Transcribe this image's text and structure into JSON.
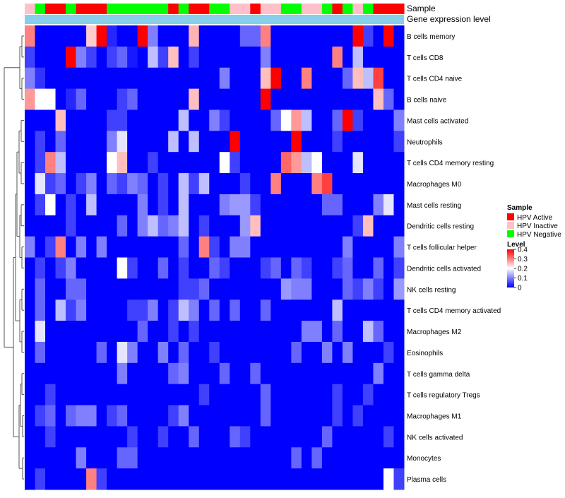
{
  "chart_data": {
    "type": "heatmap",
    "title": "",
    "annotation_tracks": {
      "sample_label": "Sample",
      "expression_label": "Gene expression level",
      "expression_color": "#87CEEB"
    },
    "samples": [
      "HPV Inactive",
      "HPV Negative",
      "HPV Active",
      "HPV Active",
      "HPV Negative",
      "HPV Active",
      "HPV Active",
      "HPV Active",
      "HPV Negative",
      "HPV Negative",
      "HPV Negative",
      "HPV Negative",
      "HPV Negative",
      "HPV Negative",
      "HPV Active",
      "HPV Negative",
      "HPV Active",
      "HPV Active",
      "HPV Negative",
      "HPV Negative",
      "HPV Inactive",
      "HPV Inactive",
      "HPV Active",
      "HPV Inactive",
      "HPV Inactive",
      "HPV Negative",
      "HPV Negative",
      "HPV Inactive",
      "HPV Inactive",
      "HPV Negative",
      "HPV Active",
      "HPV Negative",
      "HPV Inactive",
      "HPV Negative",
      "HPV Active",
      "HPV Active",
      "HPV Active"
    ],
    "rows": [
      "B cells memory",
      "T cells CD8",
      "T cells CD4 naive",
      "B cells naive",
      "Mast cells activated",
      "Neutrophils",
      "T cells CD4 memory resting",
      "Macrophages M0",
      "Mast cells resting",
      "Dendritic cells resting",
      "T cells follicular helper",
      "Dendritic cells activated",
      "NK cells resting",
      "T cells CD4 memory activated",
      "Macrophages M2",
      "Eosinophils",
      "T cells gamma delta",
      "T cells regulatory  Tregs",
      "Macrophages M1",
      "NK cells activated",
      "Monocytes",
      "Plasma cells"
    ],
    "values": [
      [
        0.3,
        0.0,
        0.0,
        0.0,
        0.0,
        0.0,
        0.24,
        0.4,
        0.03,
        0.0,
        0.0,
        0.4,
        0.1,
        0.0,
        0.0,
        0.0,
        0.26,
        0.0,
        0.0,
        0.0,
        0.0,
        0.08,
        0.08,
        0.3,
        0.0,
        0.0,
        0.0,
        0.0,
        0.0,
        0.0,
        0.0,
        0.0,
        0.4,
        0.05,
        0.0,
        0.4,
        0.0
      ],
      [
        0.05,
        0.0,
        0.0,
        0.0,
        0.4,
        0.1,
        0.05,
        0.0,
        0.05,
        0.08,
        0.02,
        0.0,
        0.15,
        0.05,
        0.25,
        0.0,
        0.05,
        0.0,
        0.0,
        0.0,
        0.0,
        0.0,
        0.0,
        0.1,
        0.0,
        0.0,
        0.0,
        0.0,
        0.0,
        0.0,
        0.3,
        0.0,
        0.15,
        0.0,
        0.0,
        0.0,
        0.0
      ],
      [
        0.1,
        0.04,
        0.0,
        0.0,
        0.0,
        0.0,
        0.0,
        0.0,
        0.0,
        0.0,
        0.0,
        0.0,
        0.0,
        0.0,
        0.0,
        0.0,
        0.0,
        0.0,
        0.0,
        0.1,
        0.0,
        0.0,
        0.0,
        0.25,
        0.4,
        0.0,
        0.0,
        0.3,
        0.0,
        0.0,
        0.0,
        0.08,
        0.25,
        0.15,
        0.35,
        0.0,
        0.0
      ],
      [
        0.28,
        0.2,
        0.2,
        0.0,
        0.03,
        0.08,
        0.0,
        0.0,
        0.0,
        0.05,
        0.08,
        0.0,
        0.0,
        0.0,
        0.0,
        0.0,
        0.25,
        0.0,
        0.0,
        0.0,
        0.0,
        0.0,
        0.0,
        0.4,
        0.0,
        0.0,
        0.0,
        0.0,
        0.0,
        0.0,
        0.0,
        0.0,
        0.0,
        0.0,
        0.25,
        0.08,
        0.0
      ],
      [
        0.0,
        0.0,
        0.0,
        0.25,
        0.0,
        0.0,
        0.0,
        0.0,
        0.05,
        0.05,
        0.0,
        0.0,
        0.0,
        0.0,
        0.0,
        0.15,
        0.0,
        0.0,
        0.1,
        0.05,
        0.0,
        0.0,
        0.0,
        0.0,
        0.08,
        0.2,
        0.28,
        0.15,
        0.0,
        0.0,
        0.08,
        0.4,
        0.05,
        0.0,
        0.0,
        0.0,
        0.1
      ],
      [
        0.0,
        0.05,
        0.0,
        0.08,
        0.0,
        0.0,
        0.0,
        0.0,
        0.1,
        0.18,
        0.0,
        0.0,
        0.0,
        0.0,
        0.15,
        0.0,
        0.15,
        0.0,
        0.0,
        0.0,
        0.4,
        0.0,
        0.0,
        0.0,
        0.0,
        0.0,
        0.4,
        0.0,
        0.0,
        0.0,
        0.05,
        0.0,
        0.0,
        0.0,
        0.0,
        0.0,
        0.05
      ],
      [
        0.0,
        0.05,
        0.3,
        0.15,
        0.0,
        0.0,
        0.0,
        0.0,
        0.2,
        0.25,
        0.0,
        0.0,
        0.05,
        0.0,
        0.0,
        0.0,
        0.0,
        0.0,
        0.0,
        0.2,
        0.05,
        0.0,
        0.0,
        0.0,
        0.0,
        0.32,
        0.28,
        0.15,
        0.2,
        0.0,
        0.0,
        0.0,
        0.18,
        0.0,
        0.0,
        0.0,
        0.0
      ],
      [
        0.0,
        0.18,
        0.05,
        0.08,
        0.0,
        0.05,
        0.1,
        0.0,
        0.08,
        0.05,
        0.1,
        0.08,
        0.0,
        0.05,
        0.0,
        0.15,
        0.05,
        0.15,
        0.0,
        0.0,
        0.0,
        0.05,
        0.0,
        0.0,
        0.3,
        0.0,
        0.0,
        0.0,
        0.3,
        0.35,
        0.0,
        0.0,
        0.0,
        0.0,
        0.0,
        0.0,
        0.0
      ],
      [
        0.0,
        0.05,
        0.2,
        0.0,
        0.05,
        0.0,
        0.15,
        0.0,
        0.0,
        0.0,
        0.0,
        0.1,
        0.0,
        0.05,
        0.0,
        0.15,
        0.0,
        0.0,
        0.0,
        0.1,
        0.12,
        0.12,
        0.05,
        0.0,
        0.0,
        0.0,
        0.0,
        0.0,
        0.0,
        0.08,
        0.08,
        0.0,
        0.0,
        0.0,
        0.1,
        0.18,
        0.0
      ],
      [
        0.0,
        0.0,
        0.0,
        0.0,
        0.05,
        0.0,
        0.0,
        0.0,
        0.0,
        0.08,
        0.0,
        0.1,
        0.15,
        0.08,
        0.1,
        0.15,
        0.0,
        0.05,
        0.0,
        0.0,
        0.0,
        0.12,
        0.25,
        0.0,
        0.0,
        0.0,
        0.0,
        0.0,
        0.0,
        0.0,
        0.0,
        0.0,
        0.05,
        0.25,
        0.0,
        0.0,
        0.0
      ],
      [
        0.1,
        0.0,
        0.05,
        0.3,
        0.0,
        0.1,
        0.0,
        0.1,
        0.0,
        0.0,
        0.0,
        0.0,
        0.0,
        0.0,
        0.0,
        0.08,
        0.0,
        0.3,
        0.05,
        0.0,
        0.1,
        0.1,
        0.0,
        0.0,
        0.0,
        0.0,
        0.0,
        0.0,
        0.0,
        0.0,
        0.0,
        0.1,
        0.0,
        0.0,
        0.0,
        0.0,
        0.1
      ],
      [
        0.0,
        0.05,
        0.0,
        0.05,
        0.1,
        0.0,
        0.0,
        0.0,
        0.0,
        0.2,
        0.05,
        0.0,
        0.0,
        0.08,
        0.0,
        0.05,
        0.0,
        0.0,
        0.08,
        0.05,
        0.0,
        0.0,
        0.0,
        0.05,
        0.08,
        0.0,
        0.08,
        0.05,
        0.0,
        0.0,
        0.05,
        0.08,
        0.0,
        0.0,
        0.08,
        0.0,
        0.05
      ],
      [
        0.0,
        0.08,
        0.0,
        0.0,
        0.08,
        0.08,
        0.0,
        0.0,
        0.0,
        0.0,
        0.0,
        0.0,
        0.0,
        0.0,
        0.0,
        0.05,
        0.05,
        0.08,
        0.0,
        0.0,
        0.0,
        0.0,
        0.0,
        0.0,
        0.0,
        0.12,
        0.1,
        0.1,
        0.0,
        0.0,
        0.0,
        0.08,
        0.05,
        0.1,
        0.05,
        0.0,
        0.12
      ],
      [
        0.0,
        0.08,
        0.0,
        0.15,
        0.05,
        0.1,
        0.0,
        0.0,
        0.0,
        0.0,
        0.05,
        0.05,
        0.1,
        0.0,
        0.05,
        0.15,
        0.1,
        0.0,
        0.08,
        0.0,
        0.08,
        0.0,
        0.0,
        0.08,
        0.0,
        0.0,
        0.0,
        0.0,
        0.0,
        0.0,
        0.15,
        0.0,
        0.0,
        0.0,
        0.0,
        0.0,
        0.0
      ],
      [
        0.0,
        0.18,
        0.0,
        0.0,
        0.0,
        0.0,
        0.0,
        0.0,
        0.0,
        0.0,
        0.0,
        0.08,
        0.0,
        0.0,
        0.05,
        0.0,
        0.05,
        0.0,
        0.0,
        0.0,
        0.0,
        0.0,
        0.0,
        0.0,
        0.0,
        0.0,
        0.0,
        0.1,
        0.1,
        0.0,
        0.08,
        0.0,
        0.0,
        0.15,
        0.08,
        0.0,
        0.0
      ],
      [
        0.0,
        0.08,
        0.0,
        0.0,
        0.0,
        0.0,
        0.0,
        0.08,
        0.0,
        0.18,
        0.1,
        0.0,
        0.0,
        0.1,
        0.0,
        0.08,
        0.0,
        0.0,
        0.05,
        0.0,
        0.0,
        0.0,
        0.0,
        0.0,
        0.0,
        0.0,
        0.08,
        0.0,
        0.0,
        0.1,
        0.0,
        0.1,
        0.0,
        0.0,
        0.0,
        0.05,
        0.0
      ],
      [
        0.0,
        0.0,
        0.0,
        0.0,
        0.0,
        0.0,
        0.0,
        0.0,
        0.0,
        0.1,
        0.0,
        0.0,
        0.0,
        0.0,
        0.08,
        0.1,
        0.0,
        0.0,
        0.0,
        0.08,
        0.0,
        0.0,
        0.08,
        0.0,
        0.0,
        0.0,
        0.0,
        0.0,
        0.0,
        0.0,
        0.0,
        0.0,
        0.0,
        0.0,
        0.1,
        0.0,
        0.0
      ],
      [
        0.0,
        0.0,
        0.05,
        0.0,
        0.0,
        0.0,
        0.0,
        0.0,
        0.0,
        0.0,
        0.0,
        0.0,
        0.0,
        0.0,
        0.0,
        0.0,
        0.0,
        0.05,
        0.0,
        0.0,
        0.0,
        0.0,
        0.0,
        0.08,
        0.0,
        0.0,
        0.0,
        0.0,
        0.0,
        0.0,
        0.05,
        0.0,
        0.0,
        0.05,
        0.0,
        0.0,
        0.0
      ],
      [
        0.0,
        0.05,
        0.08,
        0.0,
        0.08,
        0.1,
        0.1,
        0.0,
        0.05,
        0.08,
        0.0,
        0.0,
        0.0,
        0.0,
        0.05,
        0.1,
        0.0,
        0.0,
        0.0,
        0.0,
        0.0,
        0.0,
        0.0,
        0.08,
        0.0,
        0.0,
        0.0,
        0.0,
        0.0,
        0.0,
        0.05,
        0.0,
        0.05,
        0.0,
        0.0,
        0.0,
        0.0
      ],
      [
        0.0,
        0.0,
        0.05,
        0.0,
        0.0,
        0.0,
        0.0,
        0.0,
        0.0,
        0.0,
        0.05,
        0.0,
        0.0,
        0.05,
        0.0,
        0.0,
        0.08,
        0.0,
        0.0,
        0.0,
        0.08,
        0.05,
        0.0,
        0.0,
        0.0,
        0.0,
        0.0,
        0.0,
        0.0,
        0.08,
        0.0,
        0.0,
        0.0,
        0.0,
        0.0,
        0.05,
        0.0
      ],
      [
        0.0,
        0.0,
        0.0,
        0.0,
        0.0,
        0.1,
        0.0,
        0.0,
        0.0,
        0.08,
        0.08,
        0.0,
        0.0,
        0.0,
        0.0,
        0.0,
        0.0,
        0.0,
        0.0,
        0.0,
        0.0,
        0.0,
        0.0,
        0.0,
        0.0,
        0.0,
        0.08,
        0.0,
        0.08,
        0.0,
        0.0,
        0.0,
        0.0,
        0.0,
        0.0,
        0.0,
        0.0
      ],
      [
        0.0,
        0.05,
        0.0,
        0.0,
        0.0,
        0.0,
        0.3,
        0.05,
        0.0,
        0.0,
        0.0,
        0.0,
        0.0,
        0.0,
        0.0,
        0.0,
        0.0,
        0.0,
        0.0,
        0.0,
        0.0,
        0.0,
        0.0,
        0.0,
        0.0,
        0.0,
        0.0,
        0.0,
        0.0,
        0.0,
        0.0,
        0.0,
        0.0,
        0.0,
        0.0,
        0.2,
        0.05
      ]
    ],
    "colorbar": {
      "title": "Level",
      "range": [
        0,
        0.4
      ],
      "ticks": [
        "0.4",
        "0.3",
        "0.2",
        "0.1",
        "0"
      ],
      "low_color": "#0000FF",
      "mid_color": "#FFFFFF",
      "high_color": "#FF0000"
    },
    "legend": {
      "title": "Sample",
      "position": "right",
      "items": [
        {
          "label": "HPV Active",
          "color": "#FF0000"
        },
        {
          "label": "HPV Inactive",
          "color": "#FFC0CB"
        },
        {
          "label": "HPV Negative",
          "color": "#00FF00"
        }
      ]
    }
  }
}
